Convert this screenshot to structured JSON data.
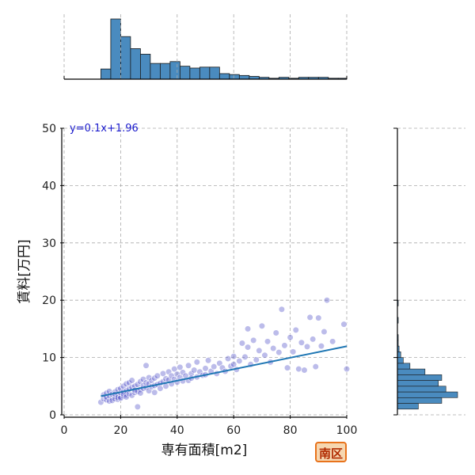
{
  "chart_data": {
    "type": "scatter",
    "xlabel": "専有面積[m2]",
    "ylabel": "賃料[万円]",
    "xlim": [
      0,
      100
    ],
    "ylim": [
      0,
      50
    ],
    "xticks": [
      0,
      20,
      40,
      60,
      80,
      100
    ],
    "yticks": [
      0,
      10,
      20,
      30,
      40,
      50
    ],
    "grid": true,
    "regression": {
      "equation": "y=0.1x+1.96",
      "slope": 0.1,
      "intercept": 1.96,
      "x_range": [
        13,
        100
      ]
    },
    "points": [
      [
        13,
        2.2
      ],
      [
        14,
        2.8
      ],
      [
        14,
        3.5
      ],
      [
        15,
        2.6
      ],
      [
        15,
        3.1
      ],
      [
        15,
        3.8
      ],
      [
        16,
        2.4
      ],
      [
        16,
        3.3
      ],
      [
        16,
        4.1
      ],
      [
        17,
        2.9
      ],
      [
        17,
        3.6
      ],
      [
        17,
        2.5
      ],
      [
        18,
        3.2
      ],
      [
        18,
        4.0
      ],
      [
        18,
        2.8
      ],
      [
        18,
        3.6
      ],
      [
        19,
        2.7
      ],
      [
        19,
        3.4
      ],
      [
        19,
        4.4
      ],
      [
        19,
        3.0
      ],
      [
        20,
        3.1
      ],
      [
        20,
        3.8
      ],
      [
        20,
        4.6
      ],
      [
        20,
        2.9
      ],
      [
        21,
        3.3
      ],
      [
        21,
        4.0
      ],
      [
        21,
        5.0
      ],
      [
        21,
        3.6
      ],
      [
        22,
        3.5
      ],
      [
        22,
        4.2
      ],
      [
        22,
        5.4
      ],
      [
        22,
        3.1
      ],
      [
        23,
        3.7
      ],
      [
        23,
        4.5
      ],
      [
        23,
        5.6
      ],
      [
        24,
        3.4
      ],
      [
        24,
        4.8
      ],
      [
        24,
        6.0
      ],
      [
        25,
        3.9
      ],
      [
        25,
        5.0
      ],
      [
        25,
        4.3
      ],
      [
        26,
        4.1
      ],
      [
        26,
        5.3
      ],
      [
        26,
        1.4
      ],
      [
        27,
        4.4
      ],
      [
        27,
        5.8
      ],
      [
        27,
        3.8
      ],
      [
        28,
        4.6
      ],
      [
        28,
        6.2
      ],
      [
        28,
        5.1
      ],
      [
        29,
        4.8
      ],
      [
        29,
        5.6
      ],
      [
        29,
        8.6
      ],
      [
        30,
        4.2
      ],
      [
        30,
        5.4
      ],
      [
        30,
        6.5
      ],
      [
        31,
        4.9
      ],
      [
        31,
        6.0
      ],
      [
        32,
        5.1
      ],
      [
        32,
        6.4
      ],
      [
        32,
        3.9
      ],
      [
        33,
        5.3
      ],
      [
        33,
        6.8
      ],
      [
        34,
        5.5
      ],
      [
        34,
        4.6
      ],
      [
        35,
        5.8
      ],
      [
        35,
        7.2
      ],
      [
        36,
        5.0
      ],
      [
        36,
        6.3
      ],
      [
        37,
        6.1
      ],
      [
        37,
        7.5
      ],
      [
        38,
        5.4
      ],
      [
        38,
        6.8
      ],
      [
        39,
        6.2
      ],
      [
        39,
        8.0
      ],
      [
        40,
        5.7
      ],
      [
        40,
        7.1
      ],
      [
        41,
        6.5
      ],
      [
        41,
        8.3
      ],
      [
        42,
        5.9
      ],
      [
        42,
        7.4
      ],
      [
        43,
        6.8
      ],
      [
        44,
        6.0
      ],
      [
        44,
        8.6
      ],
      [
        45,
        7.2
      ],
      [
        45,
        6.4
      ],
      [
        46,
        7.8
      ],
      [
        47,
        6.6
      ],
      [
        47,
        9.2
      ],
      [
        48,
        7.5
      ],
      [
        49,
        6.9
      ],
      [
        50,
        8.1
      ],
      [
        50,
        7.0
      ],
      [
        51,
        9.5
      ],
      [
        52,
        7.6
      ],
      [
        53,
        8.4
      ],
      [
        54,
        7.2
      ],
      [
        55,
        9.0
      ],
      [
        56,
        8.2
      ],
      [
        57,
        7.6
      ],
      [
        58,
        9.8
      ],
      [
        59,
        8.5
      ],
      [
        60,
        10.2
      ],
      [
        60,
        8.8
      ],
      [
        61,
        7.9
      ],
      [
        62,
        9.4
      ],
      [
        63,
        12.5
      ],
      [
        64,
        10.1
      ],
      [
        65,
        11.8
      ],
      [
        65,
        15.0
      ],
      [
        66,
        8.8
      ],
      [
        67,
        13.0
      ],
      [
        68,
        9.6
      ],
      [
        69,
        11.2
      ],
      [
        70,
        15.5
      ],
      [
        71,
        10.4
      ],
      [
        72,
        12.8
      ],
      [
        73,
        9.2
      ],
      [
        74,
        11.6
      ],
      [
        75,
        14.3
      ],
      [
        76,
        10.9
      ],
      [
        77,
        18.4
      ],
      [
        78,
        12.1
      ],
      [
        79,
        8.2
      ],
      [
        80,
        13.5
      ],
      [
        81,
        11.0
      ],
      [
        82,
        14.8
      ],
      [
        83,
        8.0
      ],
      [
        84,
        12.6
      ],
      [
        85,
        7.8
      ],
      [
        86,
        11.9
      ],
      [
        87,
        17.0
      ],
      [
        88,
        13.2
      ],
      [
        89,
        8.4
      ],
      [
        90,
        16.9
      ],
      [
        91,
        12.0
      ],
      [
        92,
        14.5
      ],
      [
        93,
        20.0
      ],
      [
        95,
        12.8
      ],
      [
        99,
        15.8
      ],
      [
        100,
        8.0
      ]
    ],
    "x_histogram": {
      "bin_edges": [
        13,
        16.5,
        20,
        23.5,
        27,
        30.5,
        34,
        37.5,
        41,
        44.5,
        48,
        51.5,
        55,
        58.5,
        62,
        65.5,
        69,
        72.5,
        76,
        79.5,
        83,
        86.5,
        90,
        93.5,
        97,
        100
      ],
      "counts": [
        11,
        65,
        46,
        33,
        27,
        17,
        17,
        19,
        14,
        12,
        13,
        13,
        6,
        5,
        4,
        3,
        2,
        1,
        2,
        1,
        2,
        2,
        2,
        1,
        1
      ]
    },
    "y_histogram": {
      "bin_edges": [
        1,
        2,
        3,
        4,
        5,
        6,
        7,
        8,
        9,
        10,
        11,
        12,
        13,
        14,
        15,
        16,
        17,
        18,
        19,
        20
      ],
      "counts": [
        25,
        53,
        72,
        58,
        49,
        53,
        33,
        15,
        7,
        4,
        2,
        1,
        1,
        0,
        0,
        1,
        0,
        0,
        1
      ]
    }
  },
  "colors": {
    "point": "#5050c8",
    "point_edge": "#ffffff",
    "regression_line": "#1f77b4",
    "hist_fill": "#4a8bbf",
    "hist_edge": "#1a1a1a",
    "grid": "#aaaaaa",
    "equation_text": "#1a1acc"
  },
  "badge": {
    "label": "南区"
  }
}
